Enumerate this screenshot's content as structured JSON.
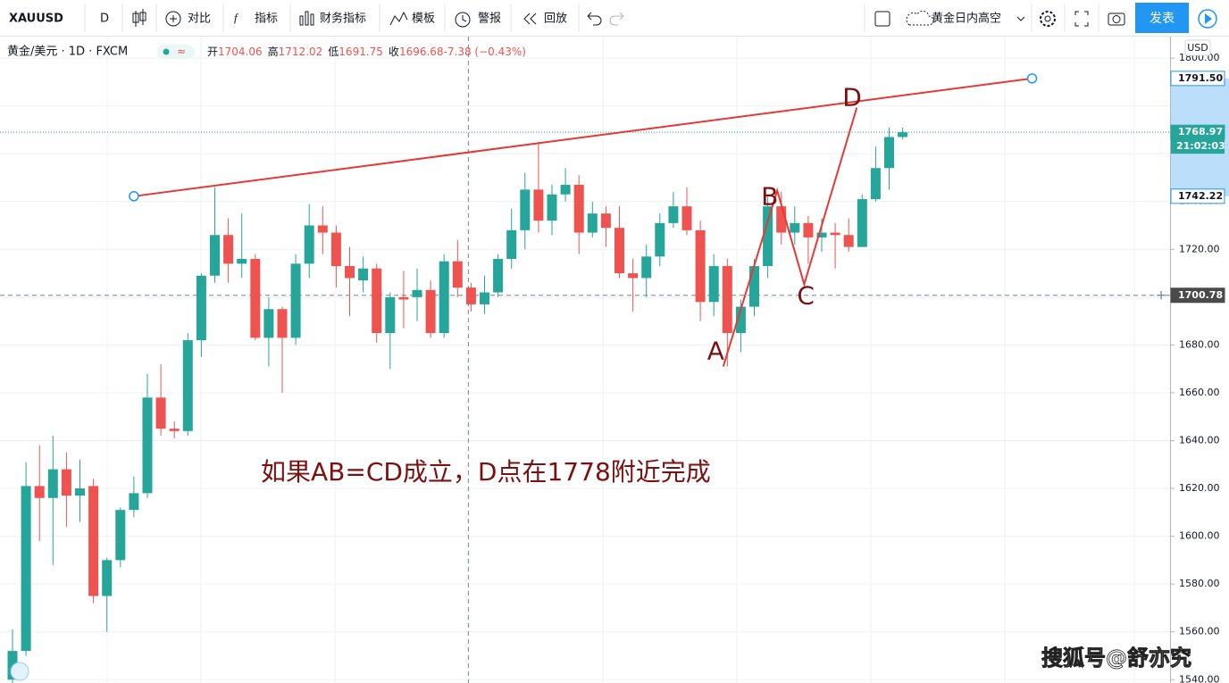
{
  "toolbar": {
    "symbol": "XAUUSD",
    "interval": "D",
    "items": [
      "对比",
      "指标",
      "财务指标",
      "模板",
      "警报",
      "回放"
    ],
    "layout_name": "黄金日内高空",
    "publish": "发表"
  },
  "legend": {
    "title": "黄金/美元 · 1D · FXCM",
    "ohlc": [
      {
        "label": "开",
        "value": "1704.06"
      },
      {
        "label": "高",
        "value": "1712.02"
      },
      {
        "label": "低",
        "value": "1691.75"
      },
      {
        "label": "收",
        "value": "1696.68"
      },
      {
        "label": "",
        "value": "-7.38 (−0.43%)"
      }
    ]
  },
  "currency": "USD",
  "watermark": "搜狐号@舒亦究",
  "chart_data": {
    "type": "candlestick",
    "up_color": "#26a69a",
    "down_color": "#ef5350",
    "open": [
      1540,
      1552,
      1621,
      1616,
      1628,
      1617,
      1621,
      1575,
      1590,
      1611,
      1618,
      1658,
      1645,
      1644,
      1682,
      1709,
      1726,
      1714,
      1716,
      1683,
      1695,
      1683,
      1714,
      1730,
      1727,
      1713,
      1707,
      1712,
      1685,
      1700,
      1700,
      1703,
      1685,
      1715,
      1704,
      1697,
      1702,
      1716,
      1728,
      1745,
      1732,
      1743,
      1747,
      1727,
      1735,
      1729,
      1710,
      1708,
      1717,
      1731,
      1738,
      1728,
      1698,
      1713,
      1685,
      1696,
      1713,
      1738,
      1727,
      1731,
      1725,
      1727,
      1726,
      1721,
      1741,
      1754,
      1767
    ],
    "high": [
      1561,
      1631,
      1638,
      1642,
      1635,
      1632,
      1624,
      1591,
      1612,
      1625,
      1668,
      1672,
      1648,
      1685,
      1710,
      1746,
      1733,
      1735,
      1718,
      1700,
      1696,
      1718,
      1739,
      1738,
      1730,
      1721,
      1717,
      1714,
      1702,
      1711,
      1712,
      1707,
      1718,
      1724,
      1706,
      1709,
      1718,
      1737,
      1752,
      1765,
      1747,
      1754,
      1751,
      1740,
      1738,
      1738,
      1716,
      1722,
      1735,
      1744,
      1746,
      1732,
      1718,
      1716,
      1699,
      1716,
      1742,
      1744,
      1738,
      1734,
      1733,
      1731,
      1733,
      1743,
      1763,
      1771,
      1771
    ],
    "low": [
      1538,
      1550,
      1598,
      1588,
      1604,
      1606,
      1572,
      1560,
      1587,
      1608,
      1616,
      1642,
      1641,
      1642,
      1675,
      1706,
      1706,
      1708,
      1682,
      1671,
      1660,
      1680,
      1708,
      1718,
      1704,
      1692,
      1702,
      1681,
      1670,
      1687,
      1690,
      1683,
      1683,
      1700,
      1694,
      1693,
      1700,
      1712,
      1720,
      1727,
      1726,
      1740,
      1718,
      1725,
      1721,
      1708,
      1694,
      1700,
      1713,
      1729,
      1726,
      1690,
      1692,
      1671,
      1677,
      1692,
      1708,
      1722,
      1722,
      1714,
      1719,
      1712,
      1719,
      1721,
      1740,
      1745,
      1766
    ],
    "close": [
      1552,
      1621,
      1616,
      1628,
      1617,
      1620,
      1575,
      1590,
      1611,
      1618,
      1658,
      1645,
      1644,
      1682,
      1709,
      1726,
      1714,
      1716,
      1683,
      1695,
      1683,
      1714,
      1730,
      1727,
      1713,
      1708,
      1712,
      1685,
      1700,
      1699,
      1703,
      1685,
      1715,
      1704,
      1697,
      1702,
      1716,
      1728,
      1745,
      1732,
      1743,
      1747,
      1727,
      1735,
      1729,
      1710,
      1708,
      1717,
      1731,
      1738,
      1728,
      1698,
      1713,
      1685,
      1696,
      1713,
      1738,
      1727,
      1731,
      1725,
      1727,
      1726,
      1721,
      1741,
      1754,
      1767,
      1768.97
    ],
    "ylim": [
      1538.6,
      1809
    ],
    "yticks": [
      {
        "value": 1540,
        "label": "1540.00"
      },
      {
        "value": 1560,
        "label": "1560.00"
      },
      {
        "value": 1580,
        "label": "1580.00"
      },
      {
        "value": 1600,
        "label": "1600.00"
      },
      {
        "value": 1620,
        "label": "1620.00"
      },
      {
        "value": 1640,
        "label": "1640.00"
      },
      {
        "value": 1660,
        "label": "1660.00"
      },
      {
        "value": 1680,
        "label": "1680.00"
      },
      {
        "value": 1700,
        "label": "1700.00"
      },
      {
        "value": 1720,
        "label": "1720.00"
      },
      {
        "value": 1740,
        "label": "1740.00"
      },
      {
        "value": 1760,
        "label": "1760.00"
      },
      {
        "value": 1780,
        "label": "1780.00"
      },
      {
        "value": 1800,
        "label": "1800.00"
      }
    ],
    "grid": true,
    "price_labels": [
      {
        "value": 1791.5,
        "label": "1791.50",
        "style": "outline"
      },
      {
        "value": 1768.97,
        "label": "1768.97",
        "style": "last"
      },
      {
        "value": 1742.22,
        "label": "1742.22",
        "style": "outline"
      },
      {
        "value": 1700.78,
        "label": "1700.78",
        "style": "cursor"
      }
    ],
    "countdown": "21:02:03",
    "trend_line": {
      "x": [
        9,
        75.6
      ],
      "y": [
        1742.22,
        1791.5
      ],
      "color": "#e53935"
    },
    "pattern": {
      "color": "#e53935",
      "label_color": "#7b1010",
      "points": [
        {
          "label": "A",
          "x": 52.7,
          "y": 1671
        },
        {
          "label": "B",
          "x": 56.7,
          "y": 1744.6
        },
        {
          "label": "C",
          "x": 58.7,
          "y": 1705.4
        },
        {
          "label": "D",
          "x": 62.6,
          "y": 1779.3
        }
      ]
    },
    "crosshair": {
      "x": 33.8,
      "y": 1700.78
    },
    "annotation": "如果AB=CD成立，D点在1778附近完成"
  }
}
